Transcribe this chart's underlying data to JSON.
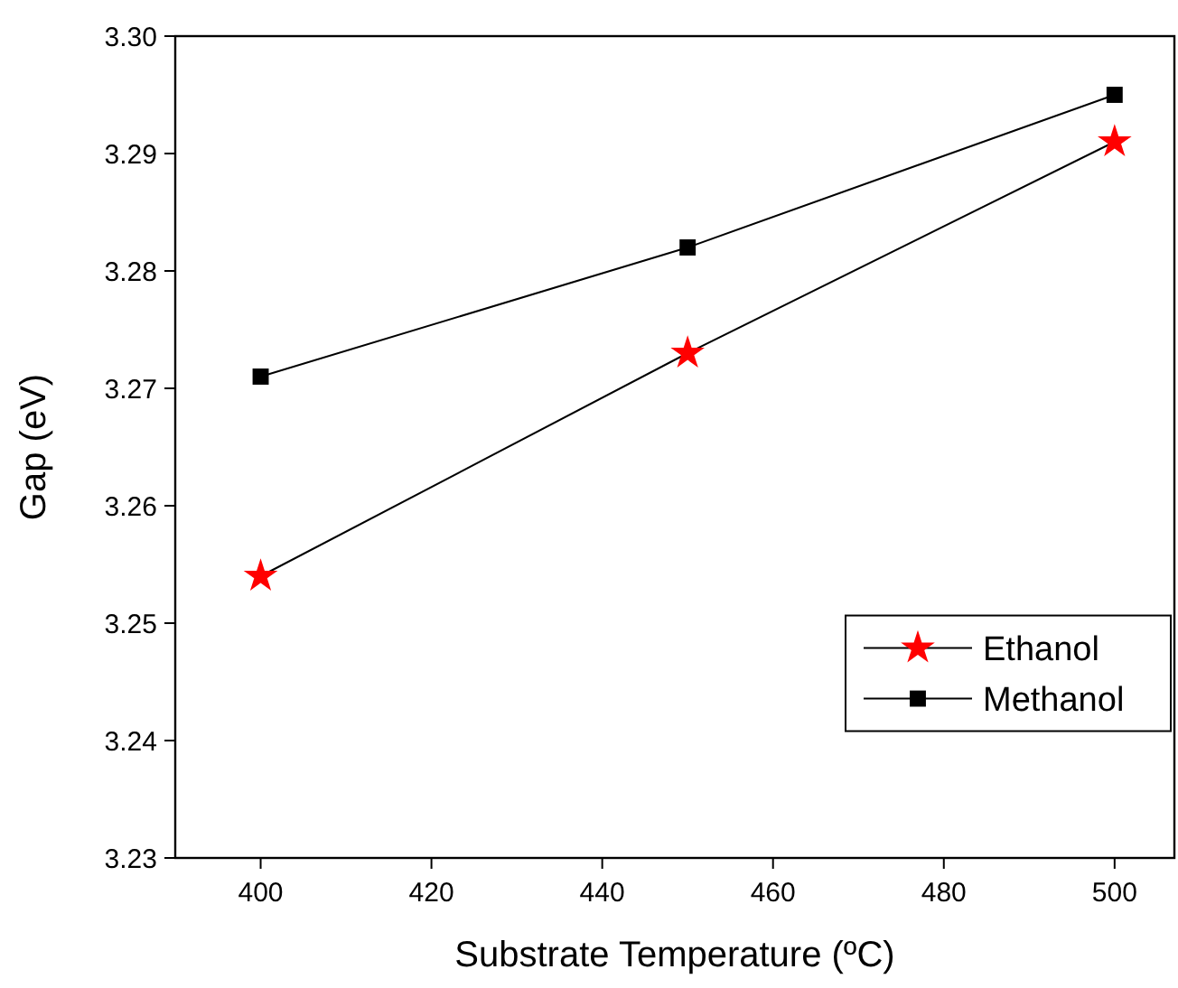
{
  "chart_data": {
    "type": "line",
    "xlabel": "Substrate Temperature (ºC)",
    "ylabel": "Gap (eV)",
    "x": [
      400,
      450,
      500
    ],
    "series": [
      {
        "name": "Ethanol",
        "color": "#ff0000",
        "marker": "star",
        "values": [
          3.254,
          3.273,
          3.291
        ]
      },
      {
        "name": "Methanol",
        "color": "#000000",
        "marker": "square",
        "values": [
          3.271,
          3.282,
          3.295
        ]
      }
    ],
    "xlim": [
      390,
      507
    ],
    "xticks": [
      400,
      420,
      440,
      460,
      480,
      500
    ],
    "ylim": [
      3.23,
      3.3
    ],
    "yticks": [
      {
        "value": 3.23,
        "label": "3.23"
      },
      {
        "value": 3.24,
        "label": "3.24"
      },
      {
        "value": 3.25,
        "label": "3.25"
      },
      {
        "value": 3.26,
        "label": "3.26"
      },
      {
        "value": 3.27,
        "label": "3.27"
      },
      {
        "value": 3.28,
        "label": "3.28"
      },
      {
        "value": 3.29,
        "label": "3.29"
      },
      {
        "value": 3.3,
        "label": "3.30"
      }
    ],
    "grid": false,
    "legend": "right",
    "line_style": "solid"
  }
}
